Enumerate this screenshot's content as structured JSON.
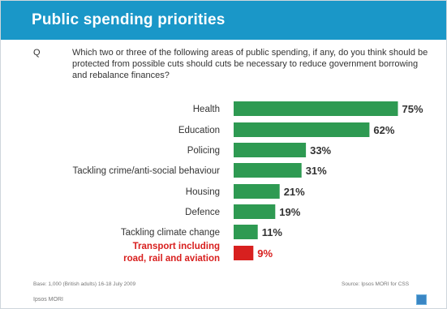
{
  "header": {
    "title": "Public spending priorities"
  },
  "question": {
    "label": "Q",
    "text": "Which two or three of the following areas of public spending, if any, do you think should be protected from possible cuts should cuts be necessary to reduce government borrowing and rebalance finances?"
  },
  "chart_data": {
    "type": "bar",
    "orientation": "horizontal",
    "categories": [
      "Health",
      "Education",
      "Policing",
      "Tackling crime/anti-social behaviour",
      "Housing",
      "Defence",
      "Tackling climate change",
      "Transport including road, rail and aviation"
    ],
    "values": [
      75,
      62,
      33,
      31,
      21,
      19,
      11,
      9
    ],
    "value_labels": [
      "75%",
      "62%",
      "33%",
      "31%",
      "21%",
      "19%",
      "11%",
      "9%"
    ],
    "highlight_index": 7,
    "colors": {
      "bar": "#2e9a52",
      "highlight": "#d8201f"
    },
    "xlim": [
      0,
      100
    ]
  },
  "footer": {
    "left": "Base: 1,000 (British adults) 16-18 July 2009",
    "right": "Source: Ipsos MORI for CSS",
    "brand": "Ipsos MORI"
  },
  "icons": {
    "corner": "square-logo-icon"
  }
}
